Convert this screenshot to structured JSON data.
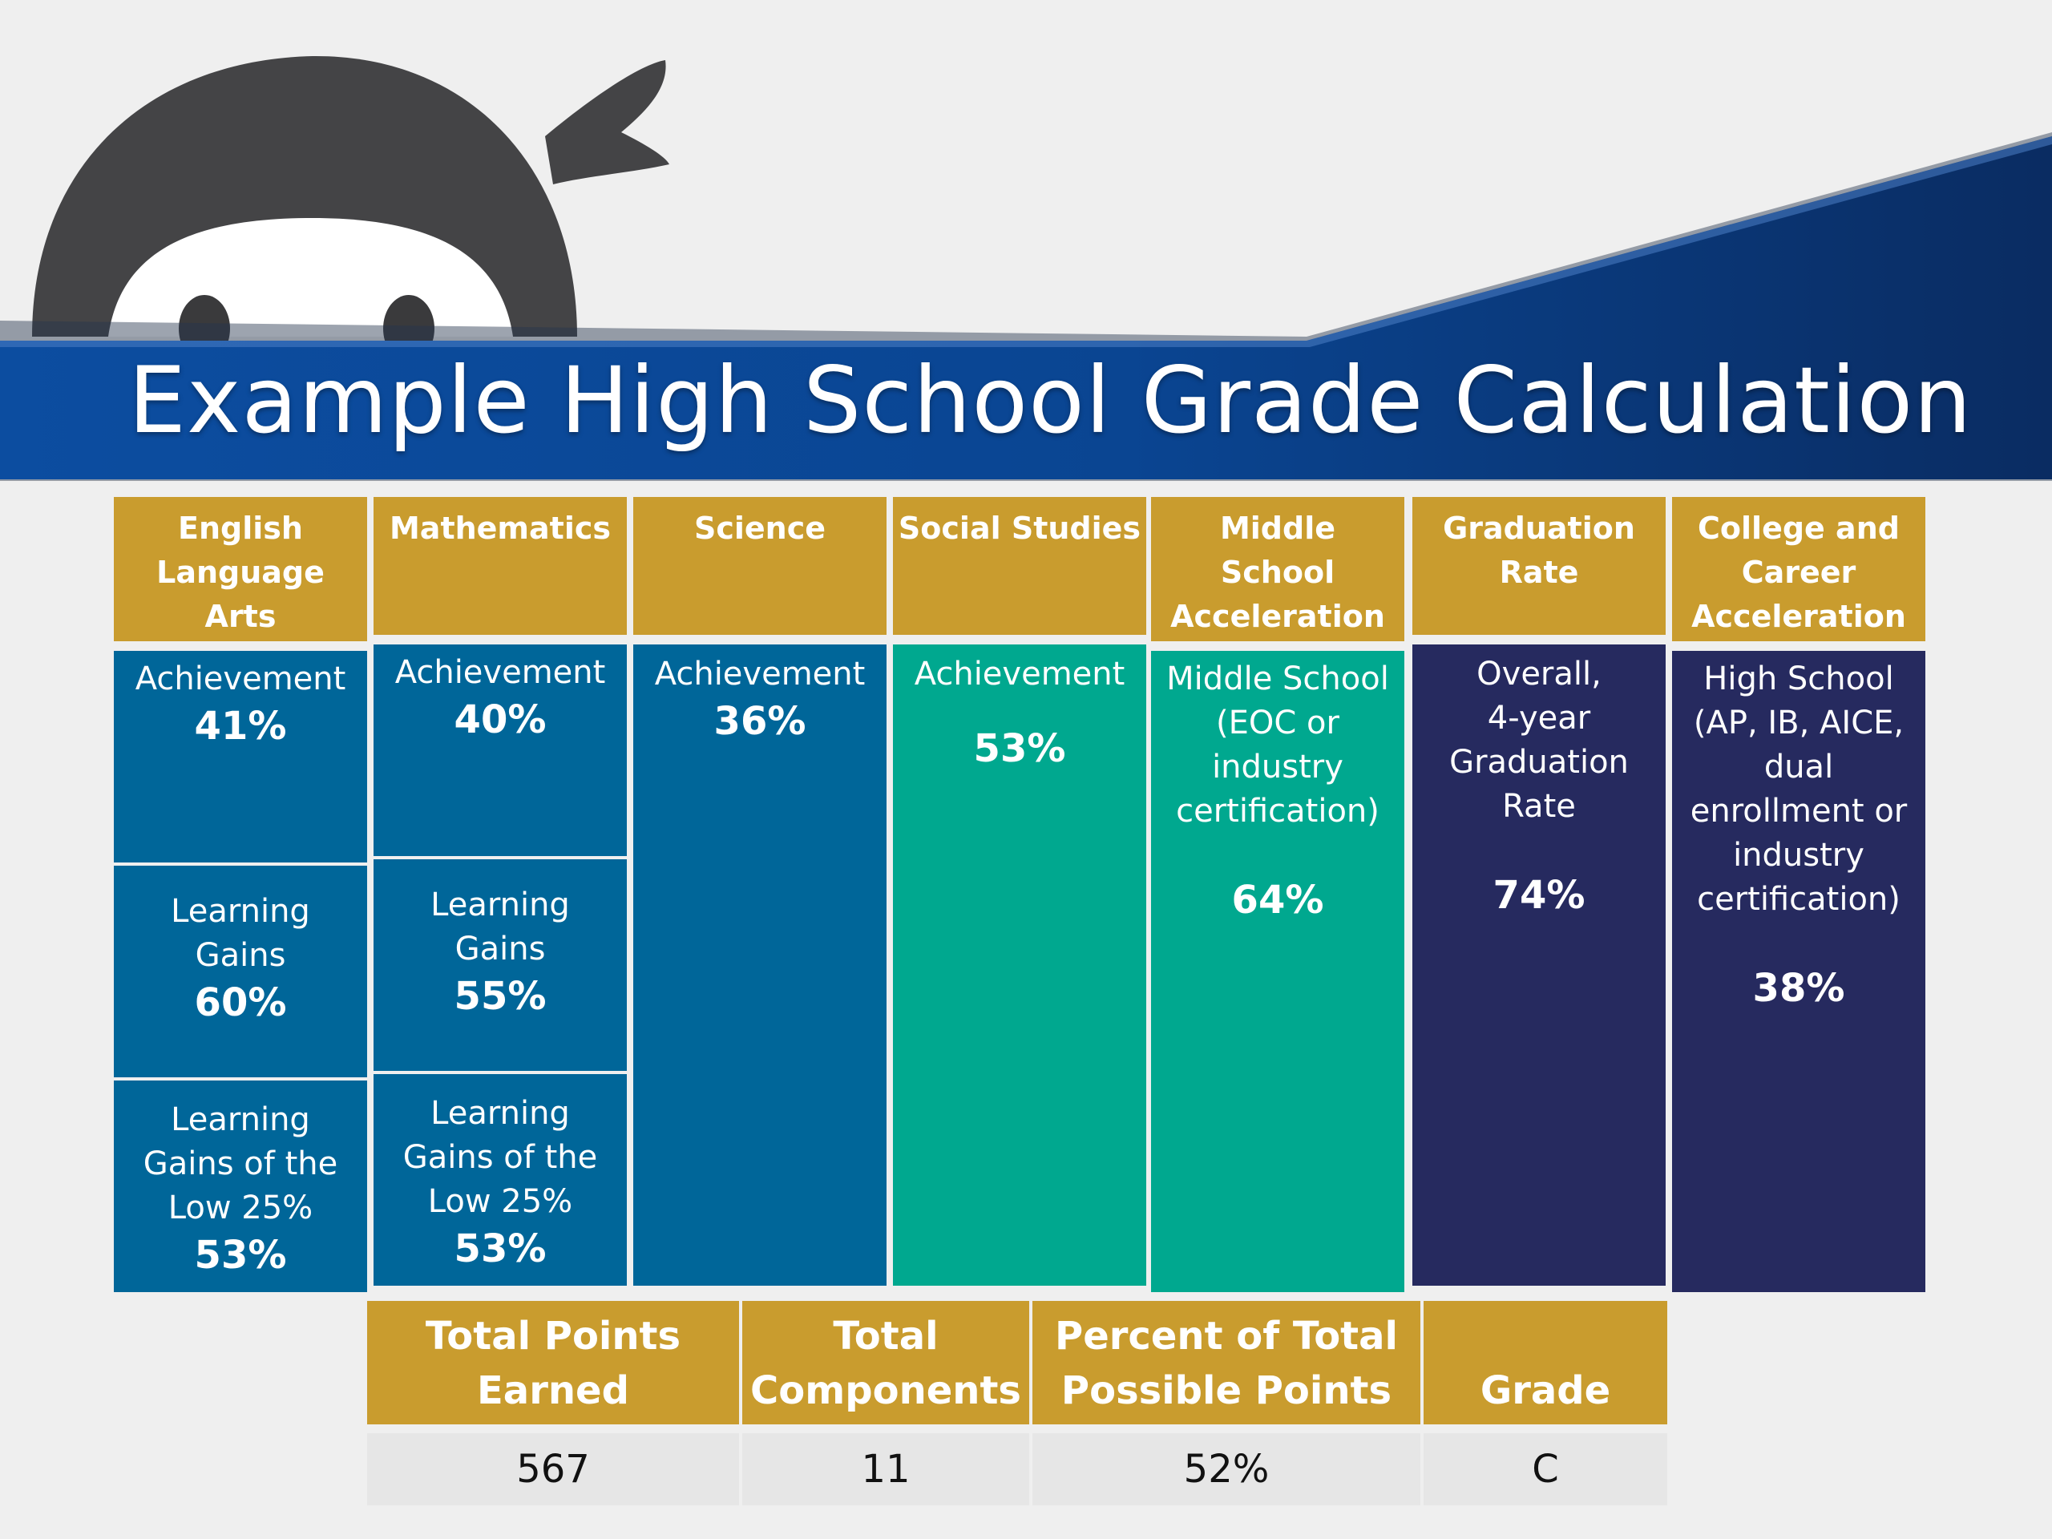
{
  "title": "Example High School Grade Calculation",
  "columns": [
    {
      "header": "English\nLanguage\nArts",
      "cells": [
        {
          "label": "Achievement",
          "value": "41%"
        },
        {
          "label": "Learning\nGains",
          "value": "60%"
        },
        {
          "label": "Learning\nGains of the\nLow 25%",
          "value": "53%"
        }
      ]
    },
    {
      "header": "Mathematics",
      "cells": [
        {
          "label": "Achievement",
          "value": "40%"
        },
        {
          "label": "Learning\nGains",
          "value": "55%"
        },
        {
          "label": "Learning\nGains of the\nLow 25%",
          "value": "53%"
        }
      ]
    },
    {
      "header": "Science",
      "cells": [
        {
          "label": "Achievement",
          "value": "36%"
        }
      ]
    },
    {
      "header": "Social Studies",
      "cells": [
        {
          "label": "Achievement",
          "value": "53%"
        }
      ]
    },
    {
      "header": "Middle\nSchool\nAcceleration",
      "cells": [
        {
          "label": "Middle School\n(EOC or\nindustry\ncertification)",
          "value": "64%"
        }
      ]
    },
    {
      "header": "Graduation\nRate",
      "cells": [
        {
          "label": "Overall,\n4-year\nGraduation\nRate",
          "value": "74%"
        }
      ]
    },
    {
      "header": "College and\nCareer\nAcceleration",
      "cells": [
        {
          "label": "High School\n(AP, IB, AICE,\ndual\nenrollment or\nindustry\ncertification)",
          "value": "38%"
        }
      ]
    }
  ],
  "summary": {
    "headers": [
      "Total Points\nEarned",
      "Total\nComponents",
      "Percent of Total\nPossible Points",
      "Grade"
    ],
    "values": [
      "567",
      "11",
      "52%",
      "C"
    ]
  },
  "colors": {
    "gold": "#c99c2e",
    "blue": "#006699",
    "teal": "#00a88f",
    "navy": "#262a5f",
    "banner": "#0d4f9e"
  }
}
